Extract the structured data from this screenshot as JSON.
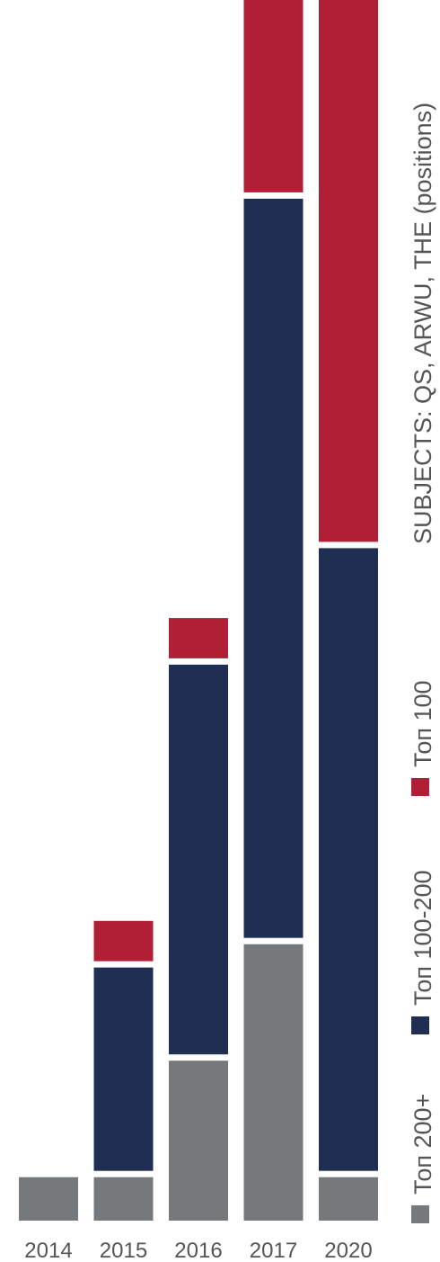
{
  "chart_data": {
    "type": "bar",
    "stacked": true,
    "orientation": "vertical",
    "title": "SUBJECTS: QS, ARWU, THE (positions)",
    "categories": [
      "2014",
      "2015",
      "2016",
      "2017",
      "2020"
    ],
    "series": [
      {
        "name": "Топ 200+",
        "color": "#76797c",
        "values": [
          2,
          2,
          7,
          12,
          2
        ]
      },
      {
        "name": "Топ 100-200",
        "color": "#1f2f54",
        "values": [
          0,
          9,
          17,
          32,
          27
        ]
      },
      {
        "name": "Топ 100",
        "color": "#b01f36",
        "values": [
          0,
          2,
          2,
          9,
          24
        ]
      }
    ],
    "ylim": [
      0,
      55
    ],
    "grid": false,
    "legend_position": "right-vertical"
  }
}
